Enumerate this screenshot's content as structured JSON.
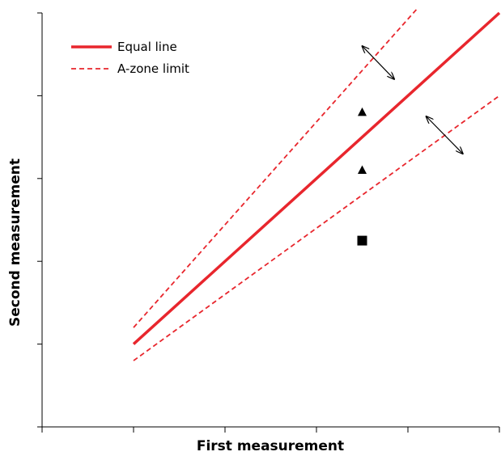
{
  "chart_data": {
    "type": "line",
    "title": "",
    "xlabel": "First measurement",
    "ylabel": "Second measurement",
    "xlim": [
      0,
      5
    ],
    "ylim": [
      0,
      5
    ],
    "x_ticks": 5,
    "y_ticks": 5,
    "grid": false,
    "legend_position": "top-left",
    "series": [
      {
        "name": "Equal line",
        "style": "solid",
        "color": "#e8262d",
        "points": [
          [
            1,
            1
          ],
          [
            5,
            5
          ]
        ]
      },
      {
        "name": "A-zone limit",
        "style": "dashed",
        "color": "#e8262d",
        "points": [
          [
            1,
            1.2
          ],
          [
            4.1,
            5.05
          ]
        ]
      },
      {
        "name": "",
        "legend": false,
        "style": "dashed",
        "color": "#e8262d",
        "points": [
          [
            1,
            0.8
          ],
          [
            5,
            4
          ]
        ]
      }
    ],
    "markers": [
      {
        "shape": "triangle",
        "x": 3.5,
        "y": 3.8
      },
      {
        "shape": "triangle",
        "x": 3.5,
        "y": 3.1
      },
      {
        "shape": "square",
        "x": 3.5,
        "y": 2.25
      }
    ],
    "double_arrows": [
      {
        "from": [
          3.5,
          4.6
        ],
        "to": [
          3.85,
          4.2
        ]
      },
      {
        "from": [
          4.2,
          3.75
        ],
        "to": [
          4.6,
          3.3
        ]
      }
    ]
  }
}
